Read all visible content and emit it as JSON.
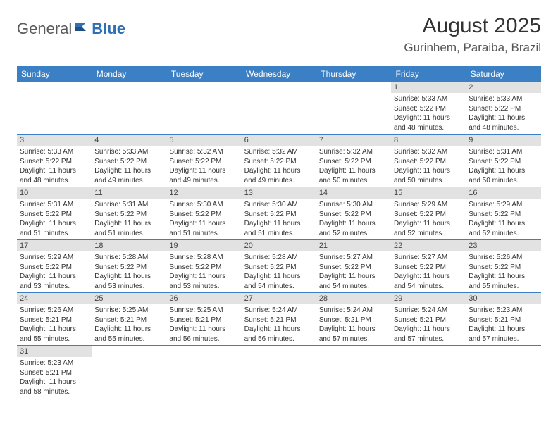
{
  "brand": {
    "part1": "General",
    "part2": "Blue"
  },
  "title": "August 2025",
  "location": "Gurinhem, Paraiba, Brazil",
  "header_bg": "#3b7fc4",
  "day_headers": [
    "Sunday",
    "Monday",
    "Tuesday",
    "Wednesday",
    "Thursday",
    "Friday",
    "Saturday"
  ],
  "weeks": [
    [
      null,
      null,
      null,
      null,
      null,
      {
        "n": "1",
        "sr": "Sunrise: 5:33 AM",
        "ss": "Sunset: 5:22 PM",
        "dl1": "Daylight: 11 hours",
        "dl2": "and 48 minutes."
      },
      {
        "n": "2",
        "sr": "Sunrise: 5:33 AM",
        "ss": "Sunset: 5:22 PM",
        "dl1": "Daylight: 11 hours",
        "dl2": "and 48 minutes."
      }
    ],
    [
      {
        "n": "3",
        "sr": "Sunrise: 5:33 AM",
        "ss": "Sunset: 5:22 PM",
        "dl1": "Daylight: 11 hours",
        "dl2": "and 48 minutes."
      },
      {
        "n": "4",
        "sr": "Sunrise: 5:33 AM",
        "ss": "Sunset: 5:22 PM",
        "dl1": "Daylight: 11 hours",
        "dl2": "and 49 minutes."
      },
      {
        "n": "5",
        "sr": "Sunrise: 5:32 AM",
        "ss": "Sunset: 5:22 PM",
        "dl1": "Daylight: 11 hours",
        "dl2": "and 49 minutes."
      },
      {
        "n": "6",
        "sr": "Sunrise: 5:32 AM",
        "ss": "Sunset: 5:22 PM",
        "dl1": "Daylight: 11 hours",
        "dl2": "and 49 minutes."
      },
      {
        "n": "7",
        "sr": "Sunrise: 5:32 AM",
        "ss": "Sunset: 5:22 PM",
        "dl1": "Daylight: 11 hours",
        "dl2": "and 50 minutes."
      },
      {
        "n": "8",
        "sr": "Sunrise: 5:32 AM",
        "ss": "Sunset: 5:22 PM",
        "dl1": "Daylight: 11 hours",
        "dl2": "and 50 minutes."
      },
      {
        "n": "9",
        "sr": "Sunrise: 5:31 AM",
        "ss": "Sunset: 5:22 PM",
        "dl1": "Daylight: 11 hours",
        "dl2": "and 50 minutes."
      }
    ],
    [
      {
        "n": "10",
        "sr": "Sunrise: 5:31 AM",
        "ss": "Sunset: 5:22 PM",
        "dl1": "Daylight: 11 hours",
        "dl2": "and 51 minutes."
      },
      {
        "n": "11",
        "sr": "Sunrise: 5:31 AM",
        "ss": "Sunset: 5:22 PM",
        "dl1": "Daylight: 11 hours",
        "dl2": "and 51 minutes."
      },
      {
        "n": "12",
        "sr": "Sunrise: 5:30 AM",
        "ss": "Sunset: 5:22 PM",
        "dl1": "Daylight: 11 hours",
        "dl2": "and 51 minutes."
      },
      {
        "n": "13",
        "sr": "Sunrise: 5:30 AM",
        "ss": "Sunset: 5:22 PM",
        "dl1": "Daylight: 11 hours",
        "dl2": "and 51 minutes."
      },
      {
        "n": "14",
        "sr": "Sunrise: 5:30 AM",
        "ss": "Sunset: 5:22 PM",
        "dl1": "Daylight: 11 hours",
        "dl2": "and 52 minutes."
      },
      {
        "n": "15",
        "sr": "Sunrise: 5:29 AM",
        "ss": "Sunset: 5:22 PM",
        "dl1": "Daylight: 11 hours",
        "dl2": "and 52 minutes."
      },
      {
        "n": "16",
        "sr": "Sunrise: 5:29 AM",
        "ss": "Sunset: 5:22 PM",
        "dl1": "Daylight: 11 hours",
        "dl2": "and 52 minutes."
      }
    ],
    [
      {
        "n": "17",
        "sr": "Sunrise: 5:29 AM",
        "ss": "Sunset: 5:22 PM",
        "dl1": "Daylight: 11 hours",
        "dl2": "and 53 minutes."
      },
      {
        "n": "18",
        "sr": "Sunrise: 5:28 AM",
        "ss": "Sunset: 5:22 PM",
        "dl1": "Daylight: 11 hours",
        "dl2": "and 53 minutes."
      },
      {
        "n": "19",
        "sr": "Sunrise: 5:28 AM",
        "ss": "Sunset: 5:22 PM",
        "dl1": "Daylight: 11 hours",
        "dl2": "and 53 minutes."
      },
      {
        "n": "20",
        "sr": "Sunrise: 5:28 AM",
        "ss": "Sunset: 5:22 PM",
        "dl1": "Daylight: 11 hours",
        "dl2": "and 54 minutes."
      },
      {
        "n": "21",
        "sr": "Sunrise: 5:27 AM",
        "ss": "Sunset: 5:22 PM",
        "dl1": "Daylight: 11 hours",
        "dl2": "and 54 minutes."
      },
      {
        "n": "22",
        "sr": "Sunrise: 5:27 AM",
        "ss": "Sunset: 5:22 PM",
        "dl1": "Daylight: 11 hours",
        "dl2": "and 54 minutes."
      },
      {
        "n": "23",
        "sr": "Sunrise: 5:26 AM",
        "ss": "Sunset: 5:22 PM",
        "dl1": "Daylight: 11 hours",
        "dl2": "and 55 minutes."
      }
    ],
    [
      {
        "n": "24",
        "sr": "Sunrise: 5:26 AM",
        "ss": "Sunset: 5:21 PM",
        "dl1": "Daylight: 11 hours",
        "dl2": "and 55 minutes."
      },
      {
        "n": "25",
        "sr": "Sunrise: 5:25 AM",
        "ss": "Sunset: 5:21 PM",
        "dl1": "Daylight: 11 hours",
        "dl2": "and 55 minutes."
      },
      {
        "n": "26",
        "sr": "Sunrise: 5:25 AM",
        "ss": "Sunset: 5:21 PM",
        "dl1": "Daylight: 11 hours",
        "dl2": "and 56 minutes."
      },
      {
        "n": "27",
        "sr": "Sunrise: 5:24 AM",
        "ss": "Sunset: 5:21 PM",
        "dl1": "Daylight: 11 hours",
        "dl2": "and 56 minutes."
      },
      {
        "n": "28",
        "sr": "Sunrise: 5:24 AM",
        "ss": "Sunset: 5:21 PM",
        "dl1": "Daylight: 11 hours",
        "dl2": "and 57 minutes."
      },
      {
        "n": "29",
        "sr": "Sunrise: 5:24 AM",
        "ss": "Sunset: 5:21 PM",
        "dl1": "Daylight: 11 hours",
        "dl2": "and 57 minutes."
      },
      {
        "n": "30",
        "sr": "Sunrise: 5:23 AM",
        "ss": "Sunset: 5:21 PM",
        "dl1": "Daylight: 11 hours",
        "dl2": "and 57 minutes."
      }
    ],
    [
      {
        "n": "31",
        "sr": "Sunrise: 5:23 AM",
        "ss": "Sunset: 5:21 PM",
        "dl1": "Daylight: 11 hours",
        "dl2": "and 58 minutes."
      },
      null,
      null,
      null,
      null,
      null,
      null
    ]
  ]
}
